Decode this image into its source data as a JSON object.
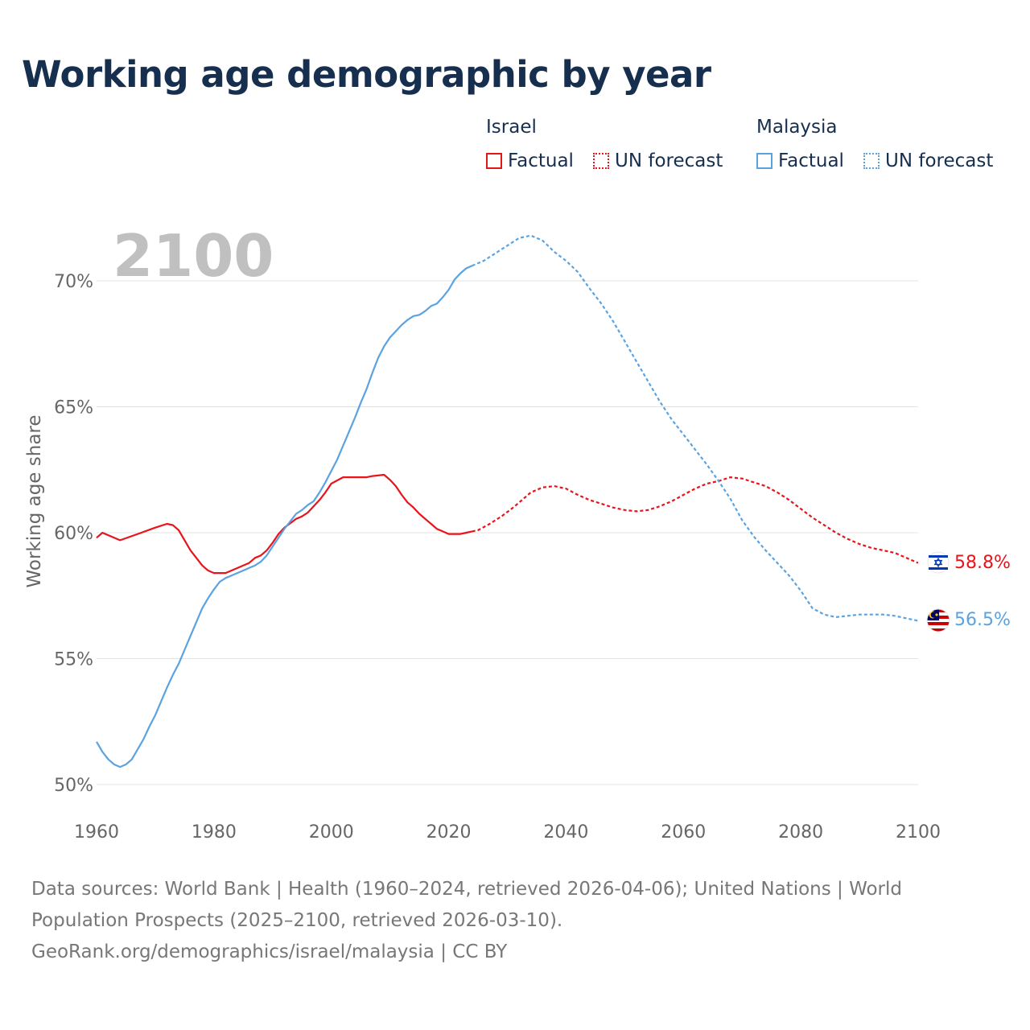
{
  "title": "Working age demographic by year",
  "legend": {
    "groups": [
      {
        "country": "Israel",
        "items": [
          {
            "label": "Factual",
            "style": "solid",
            "color": "#e8141c"
          },
          {
            "label": "UN forecast",
            "style": "dotted",
            "color": "#e8141c"
          }
        ]
      },
      {
        "country": "Malaysia",
        "items": [
          {
            "label": "Factual",
            "style": "solid",
            "color": "#5ba3e0"
          },
          {
            "label": "UN forecast",
            "style": "dotted",
            "color": "#5ba3e0"
          }
        ]
      }
    ]
  },
  "year_display": "2100",
  "footer": {
    "line1": "Data sources: World Bank | Health (1960–2024, retrieved 2026-04-06); United Nations | World",
    "line2": "Population Prospects (2025–2100, retrieved 2026-03-10).",
    "line3": "GeoRank.org/demographics/israel/malaysia | CC BY"
  },
  "chart_data": {
    "type": "line",
    "title": "Working age demographic by year",
    "ylabel": "Working age share",
    "xlabel": "",
    "xlim": [
      1960,
      2100
    ],
    "ylim": [
      50,
      72.5
    ],
    "xticks": [
      1960,
      1980,
      2000,
      2020,
      2040,
      2060,
      2080,
      2100
    ],
    "xtick_labels": [
      "1960",
      "1980",
      "2000",
      "2020",
      "2040",
      "2060",
      "2080",
      "2100"
    ],
    "yticks": [
      50,
      55,
      60,
      65,
      70
    ],
    "ytick_labels": [
      "50%",
      "55%",
      "60%",
      "65%",
      "70%"
    ],
    "grid": true,
    "forecast_start": 2024,
    "series": [
      {
        "name": "Israel",
        "color": "#e8141c",
        "end_label": "58.8%",
        "flag": "israel",
        "points": [
          [
            1960,
            59.8
          ],
          [
            1961,
            60.0
          ],
          [
            1963,
            59.8
          ],
          [
            1964,
            59.7
          ],
          [
            1967,
            59.95
          ],
          [
            1970,
            60.2
          ],
          [
            1972,
            60.35
          ],
          [
            1973,
            60.3
          ],
          [
            1974,
            60.1
          ],
          [
            1975,
            59.7
          ],
          [
            1976,
            59.3
          ],
          [
            1977,
            59.0
          ],
          [
            1978,
            58.7
          ],
          [
            1979,
            58.5
          ],
          [
            1980,
            58.4
          ],
          [
            1982,
            58.4
          ],
          [
            1983,
            58.5
          ],
          [
            1985,
            58.7
          ],
          [
            1986,
            58.8
          ],
          [
            1987,
            59.0
          ],
          [
            1988,
            59.1
          ],
          [
            1989,
            59.3
          ],
          [
            1990,
            59.6
          ],
          [
            1991,
            59.95
          ],
          [
            1992,
            60.2
          ],
          [
            1994,
            60.55
          ],
          [
            1995,
            60.65
          ],
          [
            1996,
            60.8
          ],
          [
            1997,
            61.05
          ],
          [
            1998,
            61.3
          ],
          [
            1999,
            61.6
          ],
          [
            2000,
            61.95
          ],
          [
            2002,
            62.2
          ],
          [
            2004,
            62.2
          ],
          [
            2006,
            62.2
          ],
          [
            2007,
            62.25
          ],
          [
            2009,
            62.3
          ],
          [
            2010,
            62.1
          ],
          [
            2011,
            61.85
          ],
          [
            2012,
            61.5
          ],
          [
            2013,
            61.2
          ],
          [
            2014,
            61.0
          ],
          [
            2015,
            60.75
          ],
          [
            2016,
            60.55
          ],
          [
            2017,
            60.35
          ],
          [
            2018,
            60.15
          ],
          [
            2019,
            60.05
          ],
          [
            2020,
            59.95
          ],
          [
            2022,
            59.95
          ],
          [
            2023,
            60.0
          ],
          [
            2024,
            60.05
          ],
          [
            2025,
            60.1
          ],
          [
            2027,
            60.35
          ],
          [
            2029,
            60.65
          ],
          [
            2031,
            61.0
          ],
          [
            2033,
            61.4
          ],
          [
            2034,
            61.6
          ],
          [
            2036,
            61.8
          ],
          [
            2038,
            61.85
          ],
          [
            2040,
            61.75
          ],
          [
            2042,
            61.5
          ],
          [
            2044,
            61.3
          ],
          [
            2046,
            61.15
          ],
          [
            2048,
            61.0
          ],
          [
            2050,
            60.9
          ],
          [
            2052,
            60.85
          ],
          [
            2054,
            60.9
          ],
          [
            2056,
            61.05
          ],
          [
            2058,
            61.25
          ],
          [
            2060,
            61.5
          ],
          [
            2062,
            61.75
          ],
          [
            2064,
            61.95
          ],
          [
            2066,
            62.05
          ],
          [
            2068,
            62.2
          ],
          [
            2070,
            62.15
          ],
          [
            2072,
            62.0
          ],
          [
            2074,
            61.85
          ],
          [
            2076,
            61.6
          ],
          [
            2078,
            61.3
          ],
          [
            2080,
            60.95
          ],
          [
            2082,
            60.6
          ],
          [
            2084,
            60.3
          ],
          [
            2086,
            60.0
          ],
          [
            2088,
            59.75
          ],
          [
            2090,
            59.55
          ],
          [
            2092,
            59.4
          ],
          [
            2094,
            59.3
          ],
          [
            2096,
            59.2
          ],
          [
            2098,
            59.0
          ],
          [
            2100,
            58.8
          ]
        ]
      },
      {
        "name": "Malaysia",
        "color": "#5ba3e0",
        "end_label": "56.5%",
        "flag": "malaysia",
        "points": [
          [
            1960,
            51.7
          ],
          [
            1961,
            51.3
          ],
          [
            1962,
            51.0
          ],
          [
            1963,
            50.8
          ],
          [
            1964,
            50.7
          ],
          [
            1965,
            50.8
          ],
          [
            1966,
            51.0
          ],
          [
            1967,
            51.4
          ],
          [
            1968,
            51.8
          ],
          [
            1969,
            52.3
          ],
          [
            1970,
            52.75
          ],
          [
            1971,
            53.3
          ],
          [
            1972,
            53.85
          ],
          [
            1973,
            54.35
          ],
          [
            1974,
            54.8
          ],
          [
            1975,
            55.35
          ],
          [
            1976,
            55.9
          ],
          [
            1977,
            56.45
          ],
          [
            1978,
            57.0
          ],
          [
            1979,
            57.4
          ],
          [
            1980,
            57.75
          ],
          [
            1981,
            58.05
          ],
          [
            1982,
            58.2
          ],
          [
            1983,
            58.3
          ],
          [
            1984,
            58.4
          ],
          [
            1985,
            58.5
          ],
          [
            1986,
            58.6
          ],
          [
            1987,
            58.7
          ],
          [
            1988,
            58.85
          ],
          [
            1989,
            59.1
          ],
          [
            1990,
            59.45
          ],
          [
            1991,
            59.8
          ],
          [
            1992,
            60.15
          ],
          [
            1993,
            60.45
          ],
          [
            1994,
            60.75
          ],
          [
            1995,
            60.9
          ],
          [
            1996,
            61.1
          ],
          [
            1997,
            61.25
          ],
          [
            1998,
            61.6
          ],
          [
            1999,
            62.0
          ],
          [
            2000,
            62.45
          ],
          [
            2001,
            62.9
          ],
          [
            2002,
            63.45
          ],
          [
            2003,
            64.0
          ],
          [
            2004,
            64.55
          ],
          [
            2005,
            65.15
          ],
          [
            2006,
            65.7
          ],
          [
            2007,
            66.35
          ],
          [
            2008,
            66.95
          ],
          [
            2009,
            67.4
          ],
          [
            2010,
            67.75
          ],
          [
            2011,
            68.0
          ],
          [
            2012,
            68.25
          ],
          [
            2013,
            68.45
          ],
          [
            2014,
            68.6
          ],
          [
            2015,
            68.65
          ],
          [
            2016,
            68.8
          ],
          [
            2017,
            69.0
          ],
          [
            2018,
            69.1
          ],
          [
            2019,
            69.35
          ],
          [
            2020,
            69.65
          ],
          [
            2021,
            70.05
          ],
          [
            2022,
            70.3
          ],
          [
            2023,
            70.5
          ],
          [
            2024,
            70.6
          ],
          [
            2026,
            70.8
          ],
          [
            2028,
            71.1
          ],
          [
            2030,
            71.4
          ],
          [
            2032,
            71.7
          ],
          [
            2034,
            71.8
          ],
          [
            2036,
            71.6
          ],
          [
            2038,
            71.15
          ],
          [
            2040,
            70.8
          ],
          [
            2042,
            70.35
          ],
          [
            2044,
            69.7
          ],
          [
            2046,
            69.1
          ],
          [
            2048,
            68.4
          ],
          [
            2050,
            67.6
          ],
          [
            2052,
            66.8
          ],
          [
            2054,
            66.0
          ],
          [
            2056,
            65.2
          ],
          [
            2058,
            64.5
          ],
          [
            2060,
            63.9
          ],
          [
            2062,
            63.3
          ],
          [
            2064,
            62.7
          ],
          [
            2066,
            62.05
          ],
          [
            2068,
            61.35
          ],
          [
            2070,
            60.5
          ],
          [
            2072,
            59.85
          ],
          [
            2074,
            59.3
          ],
          [
            2076,
            58.8
          ],
          [
            2078,
            58.3
          ],
          [
            2080,
            57.7
          ],
          [
            2082,
            57.0
          ],
          [
            2084,
            56.75
          ],
          [
            2086,
            56.65
          ],
          [
            2088,
            56.7
          ],
          [
            2090,
            56.75
          ],
          [
            2092,
            56.75
          ],
          [
            2094,
            56.75
          ],
          [
            2096,
            56.7
          ],
          [
            2098,
            56.6
          ],
          [
            2100,
            56.5
          ]
        ]
      }
    ]
  }
}
